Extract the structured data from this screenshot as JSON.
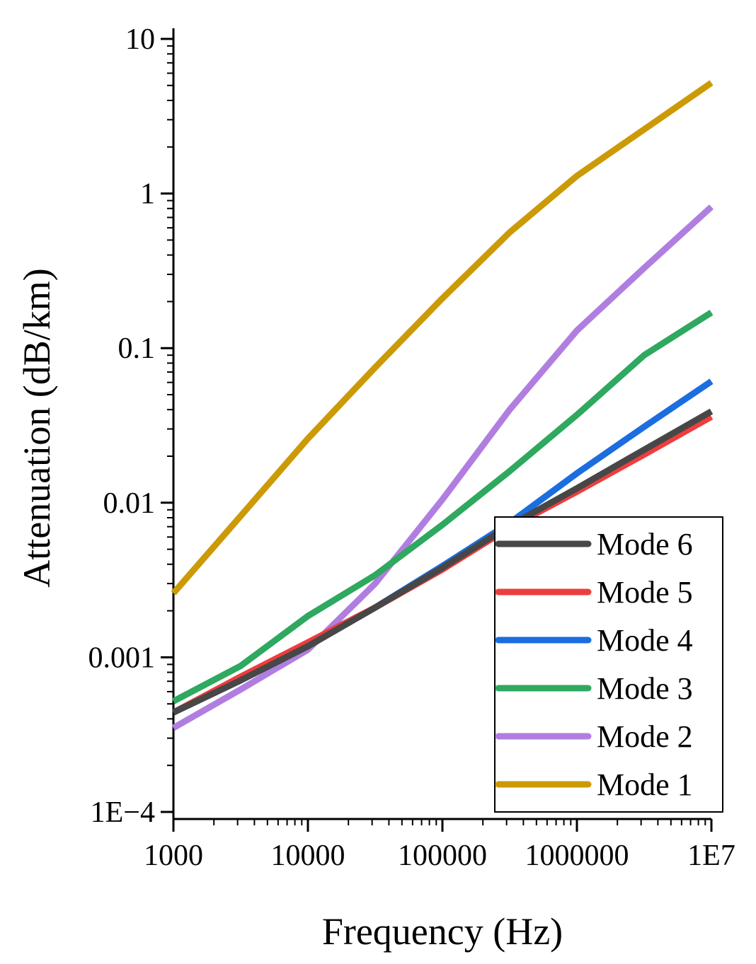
{
  "chart_data": {
    "type": "line",
    "title": "",
    "xlabel": "Frequency (Hz)",
    "ylabel": "Attenuation (dB/km)",
    "xscale": "log",
    "yscale": "log",
    "xlim": [
      1000,
      10000000
    ],
    "ylim": [
      0.0001,
      10
    ],
    "grid": false,
    "legend_position": "bottom-right",
    "x_ticks": [
      {
        "value": 1000,
        "label": "1000"
      },
      {
        "value": 10000,
        "label": "10000"
      },
      {
        "value": 100000,
        "label": "100000"
      },
      {
        "value": 1000000,
        "label": "1000000"
      },
      {
        "value": 10000000,
        "label": "1E7"
      }
    ],
    "y_ticks": [
      {
        "value": 0.0001,
        "label": "1E−4"
      },
      {
        "value": 0.001,
        "label": "0.001"
      },
      {
        "value": 0.01,
        "label": "0.01"
      },
      {
        "value": 0.1,
        "label": "0.1"
      },
      {
        "value": 1,
        "label": "1"
      },
      {
        "value": 10,
        "label": "10"
      }
    ],
    "x": [
      1000,
      3162,
      10000,
      31623,
      100000,
      316228,
      1000000,
      3162278,
      10000000
    ],
    "series": [
      {
        "name": "Mode 6",
        "color": "#474747",
        "values": [
          0.00044,
          0.00071,
          0.00118,
          0.0021,
          0.0038,
          0.0071,
          0.0124,
          0.022,
          0.039
        ]
      },
      {
        "name": "Mode 5",
        "color": "#ee3d3d",
        "values": [
          0.00044,
          0.00075,
          0.00125,
          0.0021,
          0.0037,
          0.0069,
          0.0118,
          0.0205,
          0.036
        ]
      },
      {
        "name": "Mode 4",
        "color": "#1b6de0",
        "values": [
          0.00044,
          0.00071,
          0.00118,
          0.0021,
          0.0039,
          0.0074,
          0.0155,
          0.031,
          0.061
        ]
      },
      {
        "name": "Mode 3",
        "color": "#2fa860",
        "values": [
          0.00052,
          0.00088,
          0.00185,
          0.0034,
          0.0072,
          0.016,
          0.037,
          0.09,
          0.17
        ]
      },
      {
        "name": "Mode 2",
        "color": "#b07ee0",
        "values": [
          0.00035,
          0.00062,
          0.00112,
          0.003,
          0.0105,
          0.04,
          0.13,
          0.33,
          0.82
        ]
      },
      {
        "name": "Mode 1",
        "color": "#cc9a06",
        "values": [
          0.0026,
          0.0082,
          0.026,
          0.075,
          0.21,
          0.56,
          1.3,
          2.6,
          5.2
        ]
      }
    ]
  }
}
